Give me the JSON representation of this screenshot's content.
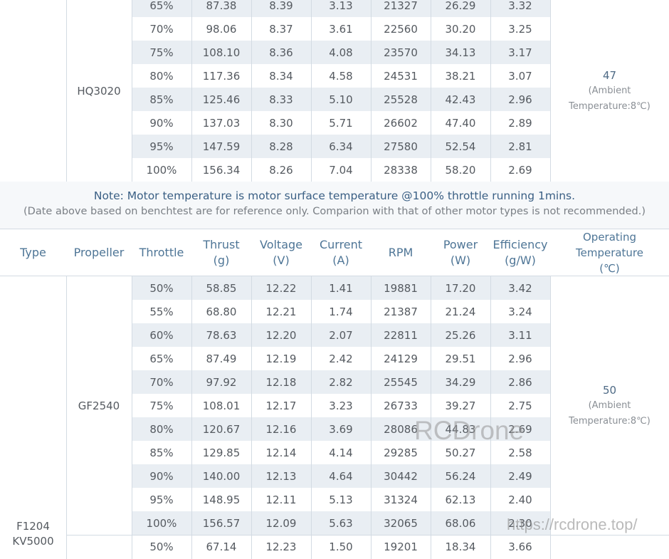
{
  "table1": {
    "propeller": "HQ3020",
    "operating_temperature": {
      "value": "47",
      "note_line1": "(Ambient",
      "note_line2": "Temperature:8℃)"
    },
    "rows": [
      [
        "65%",
        "87.38",
        "8.39",
        "3.13",
        "21327",
        "26.29",
        "3.32"
      ],
      [
        "70%",
        "98.06",
        "8.37",
        "3.61",
        "22560",
        "30.20",
        "3.25"
      ],
      [
        "75%",
        "108.10",
        "8.36",
        "4.08",
        "23570",
        "34.13",
        "3.17"
      ],
      [
        "80%",
        "117.36",
        "8.34",
        "4.58",
        "24531",
        "38.21",
        "3.07"
      ],
      [
        "85%",
        "125.46",
        "8.33",
        "5.10",
        "25528",
        "42.43",
        "2.96"
      ],
      [
        "90%",
        "137.03",
        "8.30",
        "5.71",
        "26602",
        "47.40",
        "2.89"
      ],
      [
        "95%",
        "147.59",
        "8.28",
        "6.34",
        "27580",
        "52.54",
        "2.81"
      ],
      [
        "100%",
        "156.34",
        "8.26",
        "7.04",
        "28338",
        "58.20",
        "2.69"
      ]
    ]
  },
  "notes": {
    "line1": "Note: Motor temperature is motor surface temperature @100% throttle running 1mins.",
    "line2": "(Date above based on benchtest are for reference only. Comparion with that of other motor types is not recommended.)"
  },
  "headers": {
    "type": "Type",
    "propeller": "Propeller",
    "throttle": "Throttle",
    "thrust": [
      "Thrust",
      "(g)"
    ],
    "voltage": [
      "Voltage",
      "(V)"
    ],
    "current": [
      "Current",
      "(A)"
    ],
    "rpm": "RPM",
    "power": [
      "Power",
      "(W)"
    ],
    "efficiency": [
      "Efficiency",
      "(g/W)"
    ],
    "operating_temperature": [
      "Operating",
      "Temperature",
      "(℃)"
    ]
  },
  "table2": {
    "type_line1": "F1204",
    "type_line2": "KV5000",
    "propeller": "GF2540",
    "operating_temperature": {
      "value": "50",
      "note_line1": "(Ambient",
      "note_line2": "Temperature:8℃)"
    },
    "rows": [
      [
        "50%",
        "58.85",
        "12.22",
        "1.41",
        "19881",
        "17.20",
        "3.42"
      ],
      [
        "55%",
        "68.80",
        "12.21",
        "1.74",
        "21387",
        "21.24",
        "3.24"
      ],
      [
        "60%",
        "78.63",
        "12.20",
        "2.07",
        "22811",
        "25.26",
        "3.11"
      ],
      [
        "65%",
        "87.49",
        "12.19",
        "2.42",
        "24129",
        "29.51",
        "2.96"
      ],
      [
        "70%",
        "97.92",
        "12.18",
        "2.82",
        "25545",
        "34.29",
        "2.86"
      ],
      [
        "75%",
        "108.01",
        "12.17",
        "3.23",
        "26733",
        "39.27",
        "2.75"
      ],
      [
        "80%",
        "120.67",
        "12.16",
        "3.69",
        "28086",
        "44.83",
        "2.69"
      ],
      [
        "85%",
        "129.85",
        "12.14",
        "4.14",
        "29285",
        "50.27",
        "2.58"
      ],
      [
        "90%",
        "140.00",
        "12.13",
        "4.64",
        "30442",
        "56.24",
        "2.49"
      ],
      [
        "95%",
        "148.95",
        "12.11",
        "5.13",
        "31324",
        "62.13",
        "2.40"
      ],
      [
        "100%",
        "156.57",
        "12.09",
        "5.63",
        "32065",
        "68.06",
        "2.30"
      ]
    ],
    "next_row": [
      "50%",
      "67.14",
      "12.23",
      "1.50",
      "19201",
      "18.34",
      "3.66"
    ]
  },
  "watermark": {
    "brand": "RCDrone",
    "url": "https://rcdrone.top/"
  }
}
